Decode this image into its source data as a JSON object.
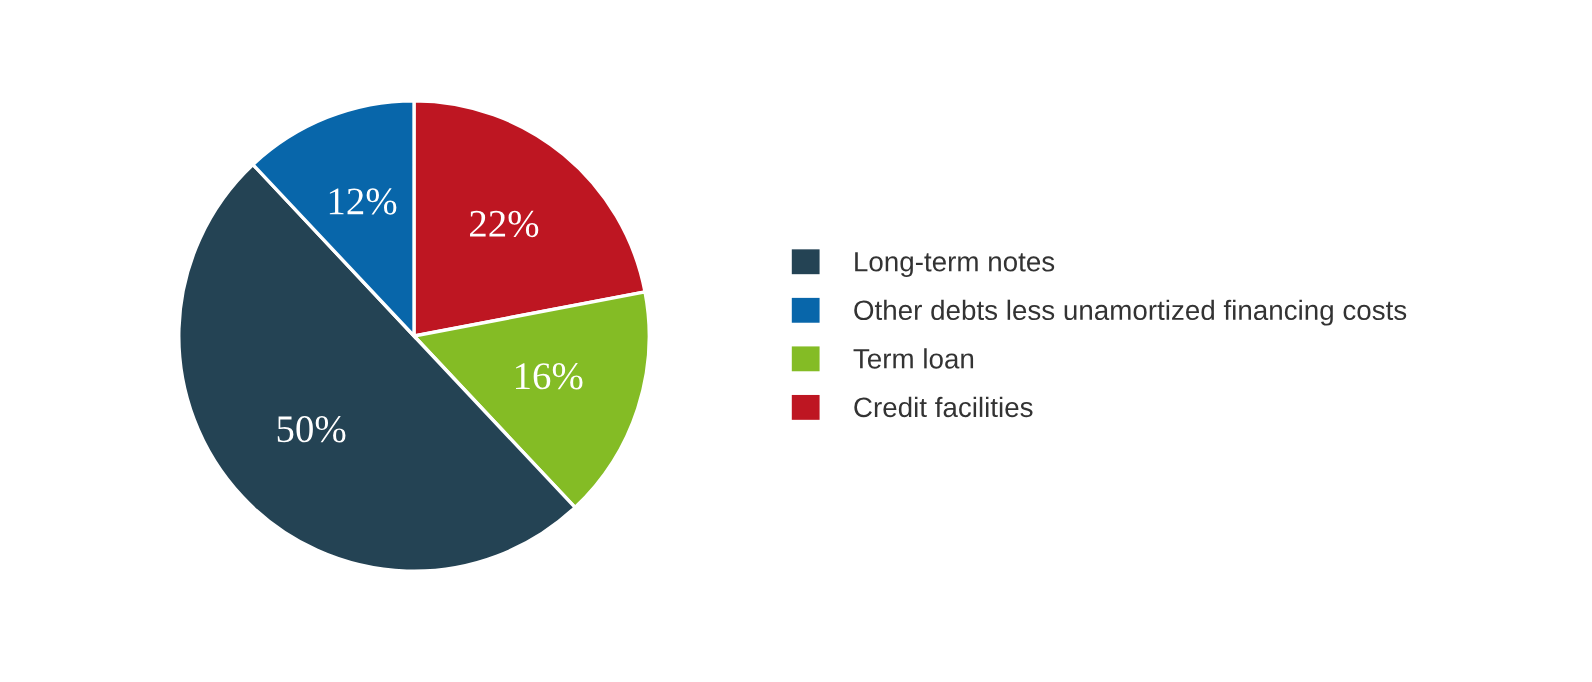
{
  "chart_data": {
    "type": "pie",
    "categories": [
      "Credit facilities",
      "Term loan",
      "Long-term notes",
      "Other debts less unamortized financing costs"
    ],
    "values": [
      22,
      16,
      50,
      12
    ],
    "colors": [
      "#be1622",
      "#84bc25",
      "#244354",
      "#0866aa"
    ],
    "value_labels": [
      "22%",
      "16%",
      "50%",
      "12%"
    ],
    "legend": "right"
  }
}
